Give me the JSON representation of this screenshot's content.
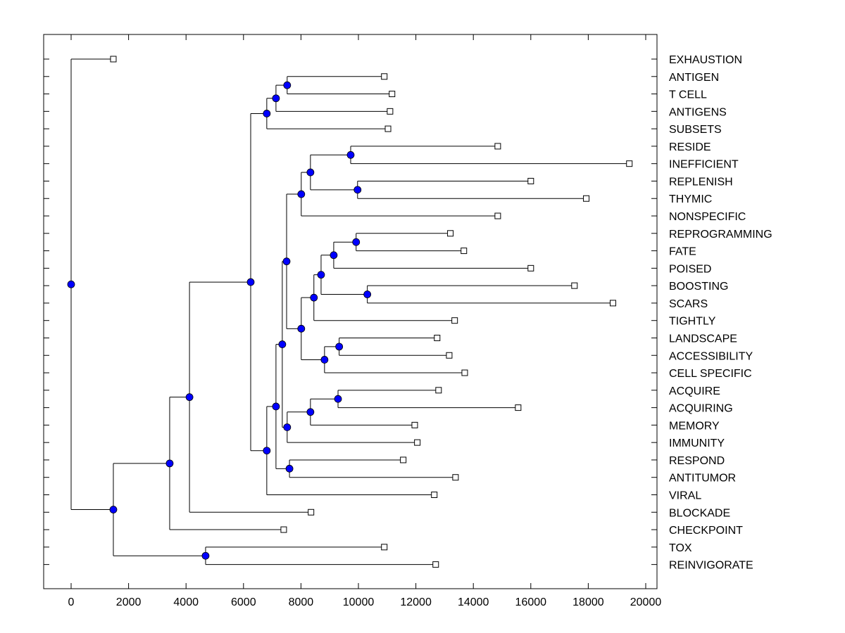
{
  "chart_data": {
    "type": "dendrogram",
    "title": "",
    "xlabel": "",
    "ylabel": "",
    "xlim": [
      -1000,
      20500
    ],
    "xticks": [
      0,
      2000,
      4000,
      6000,
      8000,
      10000,
      12000,
      14000,
      16000,
      18000,
      20000
    ],
    "xtick_labels": [
      "0",
      "2000",
      "4000",
      "6000",
      "8000",
      "10000",
      "12000",
      "14000",
      "16000",
      "18000",
      "20000"
    ],
    "grid": false,
    "colors": {
      "node_fill": "#0000ff",
      "node_stroke": "#000000",
      "line": "#000000",
      "leaf_fill": "#ffffff"
    },
    "leaves": [
      {
        "id": "L0",
        "label": "EXHAUSTION",
        "value": 1470
      },
      {
        "id": "L1",
        "label": "ANTIGEN",
        "value": 10900
      },
      {
        "id": "L2",
        "label": "T CELL",
        "value": 11170
      },
      {
        "id": "L3",
        "label": "ANTIGENS",
        "value": 11100
      },
      {
        "id": "L4",
        "label": "SUBSETS",
        "value": 11030
      },
      {
        "id": "L5",
        "label": "RESIDE",
        "value": 14850
      },
      {
        "id": "L6",
        "label": "INEFFICIENT",
        "value": 19430
      },
      {
        "id": "L7",
        "label": "REPLENISH",
        "value": 16000
      },
      {
        "id": "L8",
        "label": "THYMIC",
        "value": 17930
      },
      {
        "id": "L9",
        "label": "NONSPECIFIC",
        "value": 14850
      },
      {
        "id": "L10",
        "label": "REPROGRAMMING",
        "value": 13200
      },
      {
        "id": "L11",
        "label": "FATE",
        "value": 13670
      },
      {
        "id": "L12",
        "label": "POISED",
        "value": 16000
      },
      {
        "id": "L13",
        "label": "BOOSTING",
        "value": 17520
      },
      {
        "id": "L14",
        "label": "SCARS",
        "value": 18860
      },
      {
        "id": "L15",
        "label": "TIGHTLY",
        "value": 13350
      },
      {
        "id": "L16",
        "label": "LANDSCAPE",
        "value": 12740
      },
      {
        "id": "L17",
        "label": "ACCESSIBILITY",
        "value": 13160
      },
      {
        "id": "L18",
        "label": "CELL SPECIFIC",
        "value": 13700
      },
      {
        "id": "L19",
        "label": "ACQUIRE",
        "value": 12790
      },
      {
        "id": "L20",
        "label": "ACQUIRING",
        "value": 15560
      },
      {
        "id": "L21",
        "label": "MEMORY",
        "value": 11960
      },
      {
        "id": "L22",
        "label": "IMMUNITY",
        "value": 12050
      },
      {
        "id": "L23",
        "label": "RESPOND",
        "value": 11560
      },
      {
        "id": "L24",
        "label": "ANTITUMOR",
        "value": 13380
      },
      {
        "id": "L25",
        "label": "VIRAL",
        "value": 12640
      },
      {
        "id": "L26",
        "label": "BLOCKADE",
        "value": 8350
      },
      {
        "id": "L27",
        "label": "CHECKPOINT",
        "value": 7400
      },
      {
        "id": "L28",
        "label": "TOX",
        "value": 10900
      },
      {
        "id": "L29",
        "label": "REINVIGORATE",
        "value": 12690
      }
    ],
    "nodes": [
      {
        "id": "N1",
        "value": 7520,
        "children": [
          "L1",
          "L2"
        ]
      },
      {
        "id": "N2",
        "value": 7130,
        "children": [
          "N1",
          "L3"
        ]
      },
      {
        "id": "N3",
        "value": 6810,
        "children": [
          "N2",
          "L4"
        ]
      },
      {
        "id": "N4",
        "value": 9730,
        "children": [
          "L5",
          "L6"
        ]
      },
      {
        "id": "N5",
        "value": 9970,
        "children": [
          "L7",
          "L8"
        ]
      },
      {
        "id": "N6",
        "value": 8330,
        "children": [
          "N4",
          "N5"
        ]
      },
      {
        "id": "N7",
        "value": 8010,
        "children": [
          "N6",
          "L9"
        ]
      },
      {
        "id": "N8",
        "value": 9920,
        "children": [
          "L10",
          "L11"
        ]
      },
      {
        "id": "N9",
        "value": 9140,
        "children": [
          "N8",
          "L12"
        ]
      },
      {
        "id": "N10",
        "value": 10310,
        "children": [
          "L13",
          "L14"
        ]
      },
      {
        "id": "N11",
        "value": 8700,
        "children": [
          "N9",
          "N10"
        ]
      },
      {
        "id": "N12",
        "value": 8450,
        "children": [
          "N11",
          "L15"
        ]
      },
      {
        "id": "N13",
        "value": 9330,
        "children": [
          "L16",
          "L17"
        ]
      },
      {
        "id": "N14",
        "value": 8820,
        "children": [
          "N13",
          "L18"
        ]
      },
      {
        "id": "N15",
        "value": 8010,
        "children": [
          "N12",
          "N14"
        ]
      },
      {
        "id": "N16",
        "value": 7500,
        "children": [
          "N7",
          "N15"
        ]
      },
      {
        "id": "N17",
        "value": 9290,
        "children": [
          "L19",
          "L20"
        ]
      },
      {
        "id": "N18",
        "value": 8330,
        "children": [
          "N17",
          "L21"
        ]
      },
      {
        "id": "N19",
        "value": 7520,
        "children": [
          "N18",
          "L22"
        ]
      },
      {
        "id": "N20",
        "value": 7350,
        "children": [
          "N16",
          "N19"
        ]
      },
      {
        "id": "N21",
        "value": 7600,
        "children": [
          "L23",
          "L24"
        ]
      },
      {
        "id": "N22",
        "value": 7130,
        "children": [
          "N20",
          "N21"
        ]
      },
      {
        "id": "N23",
        "value": 6810,
        "children": [
          "N22",
          "L25"
        ]
      },
      {
        "id": "N24",
        "value": 6250,
        "children": [
          "N3",
          "N23"
        ]
      },
      {
        "id": "N25",
        "value": 4120,
        "children": [
          "N24",
          "L26"
        ]
      },
      {
        "id": "N26",
        "value": 3430,
        "children": [
          "N25",
          "L27"
        ]
      },
      {
        "id": "N27",
        "value": 4680,
        "children": [
          "L28",
          "L29"
        ]
      },
      {
        "id": "N28",
        "value": 1470,
        "children": [
          "N26",
          "N27"
        ]
      },
      {
        "id": "N29",
        "value": 0,
        "children": [
          "L0",
          "N28"
        ]
      }
    ]
  }
}
